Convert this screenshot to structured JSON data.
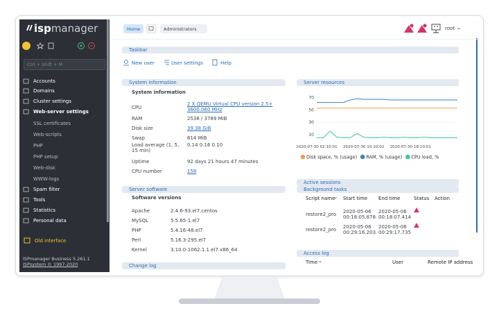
{
  "sidebar": {
    "logo_prefix": "isp",
    "logo_suffix": "manager",
    "search_placeholder": "Ctrl + Shift + M",
    "menu": [
      "Accounts",
      "Domains",
      "Cluster settings",
      "Web-server settings",
      "SSL certificates",
      "Web-scripts",
      "PHP",
      "PHP setup",
      "Web-disk",
      "WWW-logs",
      "Spam filter",
      "Tools",
      "Statistics",
      "Personal data"
    ],
    "old_interface": "Old interface",
    "footer_version": "ISPmanager Business 5.261.1",
    "footer_copyright": "ISPsystem © 1997-2020"
  },
  "topbar": {
    "tabs": [
      "Home",
      "Administrators"
    ],
    "user": "root"
  },
  "taskbar": {
    "title": "Taskbar",
    "links": [
      "New user",
      "User settings",
      "Help"
    ]
  },
  "system_information": {
    "title": "System information",
    "subtitle": "System information",
    "rows": [
      [
        "CPU",
        "2 X QEMU Virtual CPU version 2.5+ 3600.060 MHz"
      ],
      [
        "RAM",
        "2538 / 3789 MiB"
      ],
      [
        "Disk size",
        "39.38 GiB"
      ],
      [
        "Swap",
        "614 MiB"
      ],
      [
        "Load average (1, 5, 15 min)",
        "0.14 0.16 0.10"
      ],
      [
        "Uptime",
        "92 days 21 hours 47 minutes"
      ],
      [
        "CPU number",
        "158"
      ]
    ]
  },
  "server_software": {
    "title": "Server software",
    "subtitle": "Software versions",
    "rows": [
      [
        "Apache",
        "2.4.6-93.el7.centos"
      ],
      [
        "MySQL",
        "5.5.65-1.el7"
      ],
      [
        "PHP",
        "5.4.16-48.el7"
      ],
      [
        "Perl",
        "5.16.3-295.el7"
      ],
      [
        "Kernel",
        "3.10.0-1062.1.1.el7.x86_64"
      ]
    ]
  },
  "change_log": {
    "title": "Change log"
  },
  "server_resources": {
    "title": "Server resources",
    "chart_data": {
      "type": "line",
      "categories": [
        "2020-07-30 02:10:01",
        null,
        null,
        null,
        null,
        null,
        null,
        "2020-07-30 10:10:02",
        null,
        null,
        null,
        null,
        null,
        null,
        "2020-07-30 18:10:01",
        null,
        null,
        null,
        null,
        null,
        null,
        null
      ],
      "ylim": [
        0,
        75
      ],
      "yticks": [
        10,
        30,
        50,
        70
      ],
      "grid": true,
      "series": [
        {
          "name": "Disk space, % (usage)",
          "color": "#f0a04b",
          "values": [
            53,
            53,
            53,
            53,
            53,
            53,
            53,
            53,
            53,
            53,
            53,
            53,
            53,
            53,
            53,
            53,
            53,
            53,
            53,
            53,
            53,
            53
          ]
        },
        {
          "name": "RAM, % (usage)",
          "color": "#3b82c4",
          "values": [
            62,
            62,
            62,
            62,
            62,
            66,
            68,
            67,
            67,
            67,
            67,
            66,
            66,
            66,
            66,
            66,
            66,
            66,
            66,
            66,
            66,
            66
          ]
        },
        {
          "name": "CPU load, %",
          "color": "#3cc7a4",
          "values": [
            5,
            5,
            16,
            6,
            5,
            5,
            12,
            6,
            5,
            5,
            6,
            5,
            5,
            6,
            5,
            5,
            6,
            5,
            5,
            5,
            5,
            5
          ]
        }
      ]
    }
  },
  "active_sessions": {
    "title": "Active sessions"
  },
  "background_tasks": {
    "title": "Background tasks",
    "columns": [
      "Script name",
      "Start time",
      "End time",
      "Status",
      "Action"
    ],
    "rows": [
      [
        "restore2_pro",
        "2020-05-06 00:18:05.878",
        "2020-05-06 00:18:07.414"
      ],
      [
        "restore2_pro",
        "2020-05-06 00:29:16.203",
        "2020-05-06 00:29:17.735"
      ]
    ]
  },
  "access_log": {
    "title": "Access log",
    "columns": [
      "Time",
      "User",
      "Remote IP address"
    ]
  }
}
